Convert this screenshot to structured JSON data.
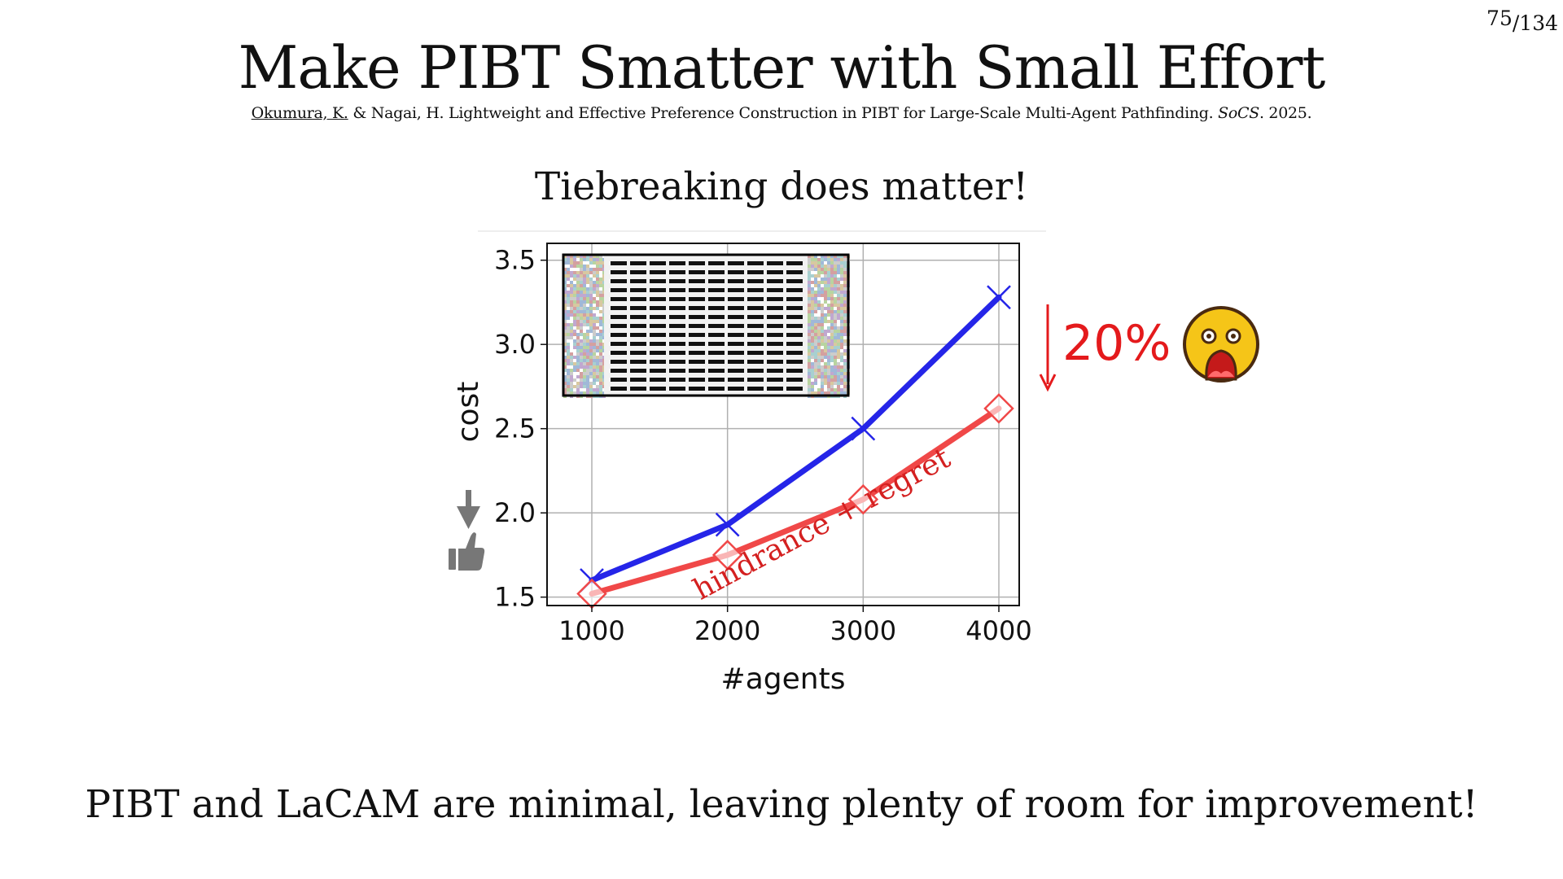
{
  "slide": {
    "page_current": "75",
    "page_total": "/134",
    "title": "Make PIBT Smatter with Small Effort",
    "citation": {
      "author_underlined": "Okumura, K.",
      "rest": " & Nagai, H. Lightweight and Effective Preference Construction in PIBT for Large-Scale Multi-Agent Pathfinding. ",
      "venue": "SoCS",
      "year": ". 2025."
    },
    "subtitle": "Tiebreaking does matter!",
    "bottom_text": "PIBT and LaCAM are minimal, leaving plenty of room for improvement!"
  },
  "callout": {
    "percent": "20%",
    "arrow_color": "#e41a1c",
    "emoji": "screaming-face-icon"
  },
  "icons": {
    "lower_is_better_arrow": "down-arrow-icon",
    "thumbs_up": "thumbs-up-icon"
  },
  "chart_data": {
    "type": "line",
    "xlabel": "#agents",
    "ylabel": "cost",
    "x": [
      1000,
      2000,
      3000,
      4000
    ],
    "xticks": [
      "1000",
      "2000",
      "3000",
      "4000"
    ],
    "yticks": [
      "1.5",
      "2.0",
      "2.5",
      "3.0",
      "3.5"
    ],
    "xlim": [
      670,
      4150
    ],
    "ylim": [
      1.45,
      3.6
    ],
    "grid": true,
    "series": [
      {
        "name": "",
        "color": "#2525e8",
        "marker": "x",
        "values": [
          1.6,
          1.93,
          2.5,
          3.28
        ]
      },
      {
        "name": "hindrance + regret",
        "color": "#f04848",
        "marker": "diamond",
        "values": [
          1.52,
          1.75,
          2.08,
          2.62
        ]
      }
    ],
    "annotation": "hindrance + regret",
    "inset": "map-thumbnail"
  }
}
